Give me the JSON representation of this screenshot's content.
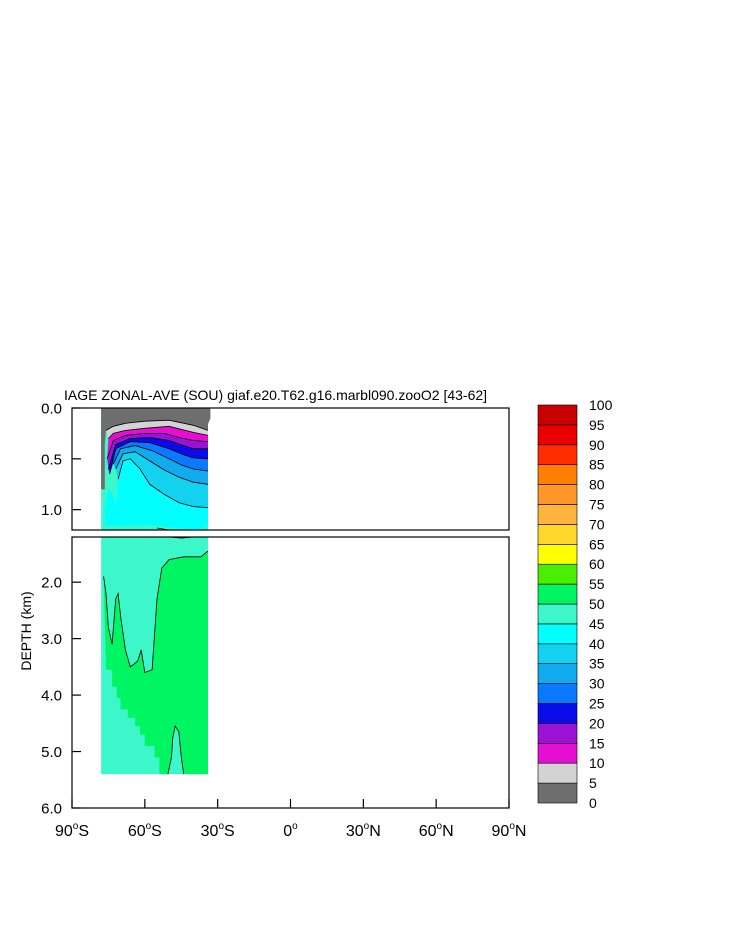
{
  "chart_data": {
    "type": "heatmap",
    "title": "IAGE ZONAL-AVE (SOU) giaf.e20.T62.g16.marbl090.zooO2 [43-62]",
    "ylabel": "DEPTH (km)",
    "xlabel": "",
    "x_ticks": [
      {
        "value": -90,
        "num": "90",
        "suf": "S"
      },
      {
        "value": -60,
        "num": "60",
        "suf": "S"
      },
      {
        "value": -30,
        "num": "30",
        "suf": "S"
      },
      {
        "value": 0,
        "num": "0",
        "suf": ""
      },
      {
        "value": 30,
        "num": "30",
        "suf": "N"
      },
      {
        "value": 60,
        "num": "60",
        "suf": "N"
      },
      {
        "value": 90,
        "num": "90",
        "suf": "N"
      }
    ],
    "upper_panel": {
      "ylim": [
        0.0,
        1.2
      ],
      "ticks": [
        "0.0",
        "0.5",
        "1.0"
      ],
      "tick_values": [
        0.0,
        0.5,
        1.0
      ]
    },
    "lower_panel": {
      "ylim": [
        1.2,
        6.0
      ],
      "ticks": [
        "2.0",
        "3.0",
        "4.0",
        "5.0",
        "6.0"
      ],
      "tick_values": [
        2.0,
        3.0,
        4.0,
        5.0,
        6.0
      ]
    },
    "xlim": [
      -90,
      90
    ],
    "data_extent": {
      "lat": [
        -78,
        -34
      ],
      "depth_km": [
        0,
        5.4
      ]
    },
    "levels": [
      "0",
      "5",
      "10",
      "15",
      "20",
      "25",
      "30",
      "35",
      "40",
      "45",
      "50",
      "55",
      "60",
      "65",
      "70",
      "75",
      "80",
      "85",
      "90",
      "95",
      "100"
    ],
    "colors": [
      "#6e6e6e",
      "#d3d3d3",
      "#e60ed2",
      "#9b12d6",
      "#0a0aeb",
      "#0a78ff",
      "#12aaee",
      "#12d2f0",
      "#00ffff",
      "#3cf7ca",
      "#00f562",
      "#4cee00",
      "#ffff00",
      "#ffd72a",
      "#ffb43c",
      "#ff9628",
      "#ff7f00",
      "#ff2d00",
      "#eb0000",
      "#c80000"
    ],
    "regions": [
      {
        "color": "#00f562",
        "pts": [
          [
            -77,
            1.9
          ],
          [
            -76,
            2.2
          ],
          [
            -75,
            2.8
          ],
          [
            -73.5,
            3.1
          ],
          [
            -72,
            2.3
          ],
          [
            -71,
            2.2
          ],
          [
            -70,
            2.6
          ],
          [
            -68,
            3.2
          ],
          [
            -66,
            3.5
          ],
          [
            -63,
            3.4
          ],
          [
            -61.5,
            3.2
          ],
          [
            -60,
            3.6
          ],
          [
            -57,
            3.55
          ],
          [
            -55,
            2.3
          ],
          [
            -53,
            1.75
          ],
          [
            -50,
            1.6
          ],
          [
            -44,
            1.55
          ],
          [
            -37,
            1.55
          ],
          [
            -34,
            1.45
          ],
          [
            -34,
            5.4
          ],
          [
            -44,
            5.4
          ],
          [
            -45,
            5.1
          ],
          [
            -46,
            4.65
          ],
          [
            -47.5,
            4.55
          ],
          [
            -48.5,
            4.75
          ],
          [
            -49,
            5.1
          ],
          [
            -50.5,
            5.4
          ],
          [
            -54,
            5.4
          ],
          [
            -54,
            5.1
          ],
          [
            -56,
            5.1
          ],
          [
            -56,
            4.9
          ],
          [
            -60,
            4.9
          ],
          [
            -60,
            4.7
          ],
          [
            -62,
            4.7
          ],
          [
            -62,
            4.55
          ],
          [
            -64,
            4.55
          ],
          [
            -64,
            4.4
          ],
          [
            -67,
            4.4
          ],
          [
            -67,
            4.25
          ],
          [
            -70,
            4.25
          ],
          [
            -70,
            4.05
          ],
          [
            -71.5,
            4.05
          ],
          [
            -71.5,
            3.85
          ],
          [
            -73.5,
            3.85
          ],
          [
            -73.5,
            3.55
          ],
          [
            -76,
            3.55
          ]
        ]
      },
      {
        "color": "#00f562",
        "pts": [
          [
            -53,
            5.4
          ],
          [
            -52,
            5.05
          ],
          [
            -50.5,
            5.1
          ],
          [
            -50,
            5.4
          ]
        ]
      },
      {
        "color": "#6e6e6e",
        "pts": [
          [
            -78,
            0.0
          ],
          [
            -33,
            0.0
          ],
          [
            -33,
            0.1
          ],
          [
            -34,
            0.16
          ],
          [
            -34,
            0.22
          ],
          [
            -40,
            0.17
          ],
          [
            -50,
            0.12
          ],
          [
            -60,
            0.13
          ],
          [
            -68,
            0.15
          ],
          [
            -73,
            0.18
          ],
          [
            -76,
            0.22
          ],
          [
            -76.5,
            0.35
          ],
          [
            -76.5,
            0.55
          ],
          [
            -76.5,
            0.8
          ],
          [
            -78,
            0.8
          ]
        ]
      },
      {
        "color": "#d3d3d3",
        "pts": [
          [
            -76,
            0.22
          ],
          [
            -73,
            0.18
          ],
          [
            -68,
            0.15
          ],
          [
            -60,
            0.13
          ],
          [
            -50,
            0.12
          ],
          [
            -40,
            0.17
          ],
          [
            -34,
            0.22
          ],
          [
            -34,
            0.27
          ],
          [
            -40,
            0.24
          ],
          [
            -50,
            0.18
          ],
          [
            -60,
            0.2
          ],
          [
            -68,
            0.22
          ],
          [
            -73,
            0.25
          ],
          [
            -75,
            0.3
          ]
        ]
      },
      {
        "color": "#e60ed2",
        "pts": [
          [
            -75,
            0.3
          ],
          [
            -73,
            0.25
          ],
          [
            -68,
            0.22
          ],
          [
            -60,
            0.2
          ],
          [
            -50,
            0.18
          ],
          [
            -40,
            0.24
          ],
          [
            -34,
            0.27
          ],
          [
            -34,
            0.33
          ],
          [
            -40,
            0.32
          ],
          [
            -46,
            0.29
          ],
          [
            -52,
            0.25
          ],
          [
            -60,
            0.25
          ],
          [
            -68,
            0.27
          ],
          [
            -73,
            0.32
          ],
          [
            -75.5,
            0.5
          ]
        ]
      },
      {
        "color": "#9b12d6",
        "pts": [
          [
            -75.5,
            0.5
          ],
          [
            -73,
            0.32
          ],
          [
            -68,
            0.27
          ],
          [
            -60,
            0.25
          ],
          [
            -52,
            0.25
          ],
          [
            -46,
            0.29
          ],
          [
            -40,
            0.32
          ],
          [
            -34,
            0.33
          ],
          [
            -34,
            0.4
          ],
          [
            -40,
            0.4
          ],
          [
            -44,
            0.37
          ],
          [
            -50,
            0.32
          ],
          [
            -58,
            0.29
          ],
          [
            -66,
            0.3
          ],
          [
            -72,
            0.36
          ],
          [
            -75,
            0.6
          ]
        ]
      },
      {
        "color": "#0a0aeb",
        "pts": [
          [
            -75,
            0.6
          ],
          [
            -72,
            0.36
          ],
          [
            -66,
            0.3
          ],
          [
            -58,
            0.29
          ],
          [
            -50,
            0.32
          ],
          [
            -44,
            0.37
          ],
          [
            -40,
            0.4
          ],
          [
            -34,
            0.4
          ],
          [
            -34,
            0.5
          ],
          [
            -40,
            0.49
          ],
          [
            -44,
            0.46
          ],
          [
            -50,
            0.4
          ],
          [
            -58,
            0.34
          ],
          [
            -66,
            0.33
          ],
          [
            -72,
            0.4
          ],
          [
            -74.5,
            0.65
          ]
        ]
      },
      {
        "color": "#0a78ff",
        "pts": [
          [
            -74.5,
            0.65
          ],
          [
            -72,
            0.4
          ],
          [
            -66,
            0.33
          ],
          [
            -58,
            0.34
          ],
          [
            -50,
            0.4
          ],
          [
            -44,
            0.46
          ],
          [
            -40,
            0.49
          ],
          [
            -34,
            0.5
          ],
          [
            -34,
            0.62
          ],
          [
            -40,
            0.6
          ],
          [
            -45,
            0.56
          ],
          [
            -50,
            0.5
          ],
          [
            -57,
            0.42
          ],
          [
            -64,
            0.37
          ],
          [
            -70,
            0.4
          ],
          [
            -73,
            0.55
          ]
        ]
      },
      {
        "color": "#12aaee",
        "pts": [
          [
            -73,
            0.55
          ],
          [
            -70,
            0.4
          ],
          [
            -64,
            0.37
          ],
          [
            -57,
            0.42
          ],
          [
            -50,
            0.5
          ],
          [
            -45,
            0.56
          ],
          [
            -40,
            0.6
          ],
          [
            -34,
            0.62
          ],
          [
            -34,
            0.75
          ],
          [
            -40,
            0.73
          ],
          [
            -46,
            0.68
          ],
          [
            -52,
            0.61
          ],
          [
            -58,
            0.52
          ],
          [
            -64,
            0.43
          ],
          [
            -69,
            0.45
          ],
          [
            -72,
            0.6
          ]
        ]
      },
      {
        "color": "#12d2f0",
        "pts": [
          [
            -72,
            0.6
          ],
          [
            -69,
            0.45
          ],
          [
            -64,
            0.43
          ],
          [
            -58,
            0.52
          ],
          [
            -52,
            0.61
          ],
          [
            -46,
            0.68
          ],
          [
            -40,
            0.73
          ],
          [
            -34,
            0.75
          ],
          [
            -34,
            0.98
          ],
          [
            -40,
            0.97
          ],
          [
            -46,
            0.93
          ],
          [
            -52,
            0.85
          ],
          [
            -58,
            0.75
          ],
          [
            -62,
            0.6
          ],
          [
            -66,
            0.5
          ],
          [
            -69,
            0.52
          ],
          [
            -71,
            0.7
          ]
        ]
      },
      {
        "color": "#00ffff",
        "pts": [
          [
            -71,
            0.7
          ],
          [
            -69,
            0.52
          ],
          [
            -66,
            0.5
          ],
          [
            -62,
            0.6
          ],
          [
            -58,
            0.75
          ],
          [
            -52,
            0.85
          ],
          [
            -46,
            0.93
          ],
          [
            -40,
            0.97
          ],
          [
            -34,
            0.98
          ],
          [
            -34,
            1.16
          ],
          [
            -38,
            1.2
          ],
          [
            -42,
            1.19
          ],
          [
            -48,
            1.18
          ],
          [
            -58,
            1.15
          ],
          [
            -68,
            1.16
          ],
          [
            -76.5,
            1.16
          ],
          [
            -76.5,
            1.0
          ],
          [
            -75,
            0.8
          ],
          [
            -73,
            0.85
          ],
          [
            -72,
            0.95
          ]
        ]
      }
    ],
    "contours": [
      [
        [
          -76,
          0.22
        ],
        [
          -73,
          0.18
        ],
        [
          -68,
          0.15
        ],
        [
          -60,
          0.13
        ],
        [
          -50,
          0.12
        ],
        [
          -40,
          0.17
        ],
        [
          -34,
          0.22
        ]
      ],
      [
        [
          -75,
          0.3
        ],
        [
          -73,
          0.25
        ],
        [
          -68,
          0.22
        ],
        [
          -60,
          0.2
        ],
        [
          -50,
          0.18
        ],
        [
          -40,
          0.24
        ],
        [
          -34,
          0.27
        ]
      ],
      [
        [
          -75.5,
          0.5
        ],
        [
          -73,
          0.32
        ],
        [
          -68,
          0.27
        ],
        [
          -60,
          0.25
        ],
        [
          -52,
          0.25
        ],
        [
          -46,
          0.29
        ],
        [
          -40,
          0.32
        ],
        [
          -34,
          0.33
        ]
      ],
      [
        [
          -75,
          0.6
        ],
        [
          -72,
          0.36
        ],
        [
          -66,
          0.3
        ],
        [
          -58,
          0.29
        ],
        [
          -50,
          0.32
        ],
        [
          -44,
          0.37
        ],
        [
          -40,
          0.4
        ],
        [
          -34,
          0.4
        ]
      ],
      [
        [
          -74.5,
          0.65
        ],
        [
          -72,
          0.4
        ],
        [
          -66,
          0.33
        ],
        [
          -58,
          0.34
        ],
        [
          -50,
          0.4
        ],
        [
          -44,
          0.46
        ],
        [
          -40,
          0.49
        ],
        [
          -34,
          0.5
        ]
      ],
      [
        [
          -73,
          0.55
        ],
        [
          -70,
          0.4
        ],
        [
          -64,
          0.37
        ],
        [
          -57,
          0.42
        ],
        [
          -50,
          0.5
        ],
        [
          -45,
          0.56
        ],
        [
          -40,
          0.6
        ],
        [
          -34,
          0.62
        ]
      ],
      [
        [
          -72,
          0.6
        ],
        [
          -69,
          0.45
        ],
        [
          -64,
          0.43
        ],
        [
          -58,
          0.52
        ],
        [
          -52,
          0.61
        ],
        [
          -46,
          0.68
        ],
        [
          -40,
          0.73
        ],
        [
          -34,
          0.75
        ]
      ],
      [
        [
          -71,
          0.7
        ],
        [
          -69,
          0.52
        ],
        [
          -66,
          0.5
        ],
        [
          -62,
          0.6
        ],
        [
          -58,
          0.75
        ],
        [
          -52,
          0.85
        ],
        [
          -46,
          0.93
        ],
        [
          -40,
          0.97
        ],
        [
          -34,
          0.98
        ]
      ],
      [
        [
          -55,
          1.18
        ],
        [
          -50,
          1.2
        ],
        [
          -45,
          1.22
        ],
        [
          -40,
          1.2
        ]
      ],
      [
        [
          -77,
          1.9
        ],
        [
          -76,
          2.2
        ],
        [
          -75,
          2.8
        ],
        [
          -73.5,
          3.1
        ],
        [
          -72,
          2.3
        ],
        [
          -71,
          2.2
        ],
        [
          -70,
          2.6
        ],
        [
          -68,
          3.2
        ],
        [
          -66,
          3.5
        ],
        [
          -63,
          3.4
        ],
        [
          -61.5,
          3.2
        ],
        [
          -60,
          3.6
        ],
        [
          -57,
          3.55
        ],
        [
          -55,
          2.3
        ],
        [
          -53,
          1.75
        ],
        [
          -50,
          1.6
        ],
        [
          -44,
          1.55
        ],
        [
          -37,
          1.55
        ],
        [
          -34,
          1.45
        ]
      ],
      [
        [
          -44,
          5.4
        ],
        [
          -45,
          5.1
        ],
        [
          -46,
          4.65
        ],
        [
          -47.5,
          4.55
        ],
        [
          -48.5,
          4.75
        ],
        [
          -49,
          5.1
        ],
        [
          -50.5,
          5.4
        ]
      ]
    ],
    "grid": false,
    "legend": "colorbar-right"
  }
}
